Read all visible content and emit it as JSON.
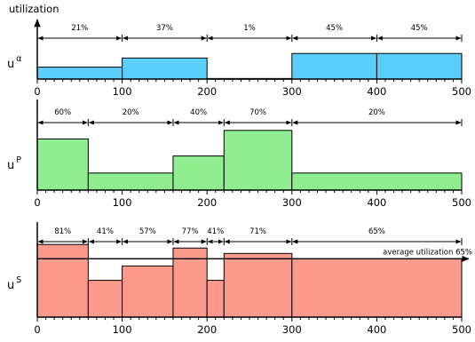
{
  "chart_data": [
    {
      "type": "bar",
      "name": "alpha",
      "label": "u",
      "superscript": "α",
      "ylabel": "utilization",
      "xlim": [
        0,
        500
      ],
      "ylim": [
        0,
        100
      ],
      "xticks": [
        0,
        100,
        200,
        300,
        400,
        500
      ],
      "segments": [
        {
          "start": 0,
          "end": 100,
          "value": 21,
          "label": "21%"
        },
        {
          "start": 100,
          "end": 200,
          "value": 37,
          "label": "37%"
        },
        {
          "start": 200,
          "end": 300,
          "value": 1,
          "label": "1%"
        },
        {
          "start": 300,
          "end": 400,
          "value": 45,
          "label": "45%"
        },
        {
          "start": 400,
          "end": 500,
          "value": 45,
          "label": "45%"
        }
      ],
      "color": "#5bcefa"
    },
    {
      "type": "bar",
      "name": "p",
      "label": "u",
      "superscript": "P",
      "xlim": [
        0,
        500
      ],
      "ylim": [
        0,
        100
      ],
      "xticks": [
        0,
        100,
        200,
        300,
        400,
        500
      ],
      "segments": [
        {
          "start": 0,
          "end": 60,
          "value": 60,
          "label": "60%"
        },
        {
          "start": 60,
          "end": 160,
          "value": 20,
          "label": "20%"
        },
        {
          "start": 160,
          "end": 220,
          "value": 40,
          "label": "40%"
        },
        {
          "start": 220,
          "end": 300,
          "value": 70,
          "label": "70%"
        },
        {
          "start": 300,
          "end": 500,
          "value": 20,
          "label": "20%"
        }
      ],
      "color": "#90ee90"
    },
    {
      "type": "bar",
      "name": "s",
      "label": "u",
      "superscript": "S",
      "xlim": [
        0,
        500
      ],
      "ylim": [
        0,
        100
      ],
      "xticks": [
        0,
        100,
        200,
        300,
        400,
        500
      ],
      "segments": [
        {
          "start": 0,
          "end": 60,
          "value": 81,
          "label": "81%"
        },
        {
          "start": 60,
          "end": 100,
          "value": 41,
          "label": "41%"
        },
        {
          "start": 100,
          "end": 160,
          "value": 57,
          "label": "57%"
        },
        {
          "start": 160,
          "end": 200,
          "value": 77,
          "label": "77%"
        },
        {
          "start": 200,
          "end": 220,
          "value": 41,
          "label": "41%"
        },
        {
          "start": 220,
          "end": 300,
          "value": 71,
          "label": "71%"
        },
        {
          "start": 300,
          "end": 500,
          "value": 65,
          "label": "65%"
        }
      ],
      "average": {
        "value": 65,
        "label": "average utilization 65%"
      },
      "color": "#fa9a8c"
    }
  ]
}
